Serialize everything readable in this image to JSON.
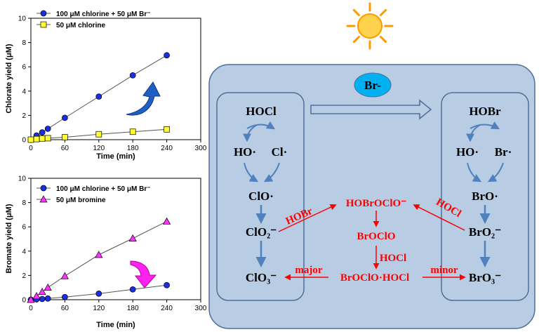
{
  "chart_data": [
    {
      "type": "scatter",
      "title": "",
      "xlabel": "Time (min)",
      "ylabel": "Chlorate yield (μM)",
      "xlim": [
        0,
        300
      ],
      "ylim": [
        0,
        10
      ],
      "xticks": [
        "0",
        "60",
        "120",
        "180",
        "240",
        "300"
      ],
      "yticks": [
        "0",
        "2",
        "4",
        "6",
        "8",
        "10"
      ],
      "legend_position": "top-left",
      "series": [
        {
          "name": "100 μM chlorine + 50 μM Br⁻",
          "marker": "circle",
          "color": "#1a2ee6",
          "x": [
            0,
            10,
            20,
            30,
            60,
            120,
            180,
            240
          ],
          "y": [
            0,
            0.35,
            0.6,
            0.9,
            1.8,
            3.55,
            5.3,
            6.95
          ]
        },
        {
          "name": "50 μM chlorine",
          "marker": "square",
          "color": "#ffff33",
          "x": [
            0,
            10,
            20,
            30,
            60,
            120,
            180,
            240
          ],
          "y": [
            0,
            0.05,
            0.1,
            0.12,
            0.2,
            0.45,
            0.65,
            0.85
          ]
        }
      ],
      "annotation_arrow": "up"
    },
    {
      "type": "scatter",
      "title": "",
      "xlabel": "Time (min)",
      "ylabel": "Bromate yield (μM)",
      "xlim": [
        0,
        300
      ],
      "ylim": [
        0,
        10
      ],
      "xticks": [
        "0",
        "60",
        "120",
        "180",
        "240",
        "300"
      ],
      "yticks": [
        "0",
        "2",
        "4",
        "6",
        "8",
        "10"
      ],
      "legend_position": "top-left",
      "series": [
        {
          "name": "100 μM chlorine + 50 μM Br⁻",
          "marker": "circle",
          "color": "#1a2ee6",
          "x": [
            0,
            10,
            20,
            30,
            60,
            120,
            180,
            240
          ],
          "y": [
            0,
            0.03,
            0.06,
            0.1,
            0.22,
            0.5,
            0.85,
            1.2
          ]
        },
        {
          "name": "50 μM bromine",
          "marker": "triangle",
          "color": "#ff33ff",
          "x": [
            0,
            10,
            20,
            30,
            60,
            120,
            180,
            240
          ],
          "y": [
            0,
            0.3,
            0.65,
            1.0,
            1.95,
            3.7,
            5.05,
            6.45
          ]
        }
      ],
      "annotation_arrow": "down"
    }
  ],
  "scheme": {
    "bromide_badge": "Br-",
    "left": {
      "hocl": "HOCl",
      "ho_radical": "HO·",
      "cl_radical": "Cl·",
      "clo_radical": "ClO·",
      "clo2": "ClO₂⁻",
      "clo3": "ClO₃⁻"
    },
    "right": {
      "hobr": "HOBr",
      "ho_radical": "HO·",
      "br_radical": "Br·",
      "bro_radical": "BrO·",
      "bro2": "BrO₂⁻",
      "bro3": "BrO₃⁻"
    },
    "middle": {
      "hobroclo": "HOBrOClO⁻",
      "broclo": "BrOClO",
      "broclo_hocl": "BrOClO·HOCl",
      "hocl_step": "HOCl",
      "hobr_arrow": "HOBr",
      "hocl_arrow": "HOCl",
      "major": "major",
      "minor": "minor"
    },
    "colors": {
      "panel_fill": "#b8cce4",
      "panel_stroke": "#4f6e9a",
      "arrow_blue": "#4f81bd",
      "red": "#ff0000",
      "badge": "#00b0f0",
      "sun": "#ff9900"
    },
    "sun_icon": "sun-icon"
  }
}
